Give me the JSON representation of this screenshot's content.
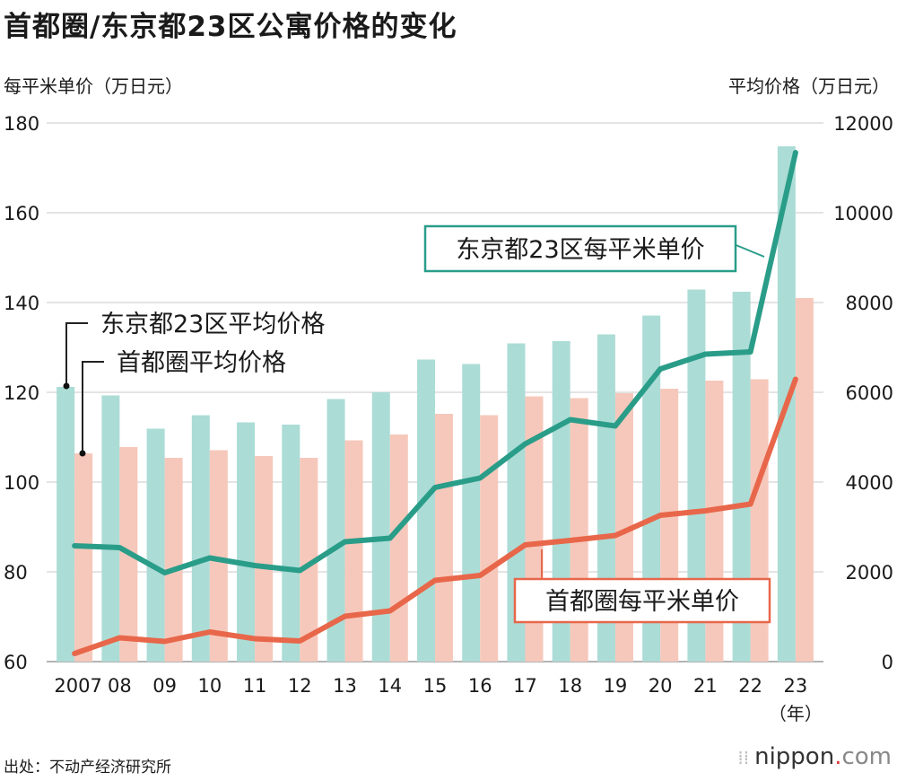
{
  "title": "首都圈/东京都23区公寓价格的变化",
  "left_axis_title": "每平米单价（万日元）",
  "right_axis_title": "平均价格（万日元）",
  "source": "出处：不动产经济研究所",
  "logo": {
    "marks": "⁞⁞",
    "text": "nippon",
    "dot": ".",
    "suffix": "com"
  },
  "chart_data": {
    "type": "bar+line",
    "categories": [
      "2007",
      "08",
      "09",
      "10",
      "11",
      "12",
      "13",
      "14",
      "15",
      "16",
      "17",
      "18",
      "19",
      "20",
      "21",
      "22",
      "23"
    ],
    "x_unit": "（年）",
    "left_axis": {
      "ylim": [
        60,
        180
      ],
      "ticks": [
        "60",
        "80",
        "100",
        "120",
        "140",
        "160",
        "180"
      ]
    },
    "right_axis": {
      "ylim": [
        0,
        12000
      ],
      "ticks": [
        "0",
        "2000",
        "4000",
        "6000",
        "8000",
        "10000",
        "12000"
      ]
    },
    "grid": true,
    "colors": {
      "tokyo_bar": "#acdcd6",
      "metro_bar": "#f6c8bb",
      "tokyo_line": "#2a9d89",
      "metro_line": "#e8674a"
    },
    "series": [
      {
        "name": "东京都23区平均价格",
        "axis": "right",
        "kind": "bar",
        "values": [
          6120,
          5930,
          5190,
          5490,
          5330,
          5280,
          5850,
          6000,
          6730,
          6630,
          7090,
          7140,
          7290,
          7710,
          8290,
          8240,
          11480
        ]
      },
      {
        "name": "首都圈平均价格",
        "axis": "right",
        "kind": "bar",
        "values": [
          4640,
          4780,
          4540,
          4710,
          4580,
          4540,
          4930,
          5060,
          5520,
          5490,
          5910,
          5870,
          5980,
          6080,
          6260,
          6290,
          8100
        ]
      },
      {
        "name": "东京都23区每平米单价",
        "axis": "left",
        "kind": "line",
        "values": [
          85.8,
          85.4,
          79.8,
          83.1,
          81.4,
          80.3,
          86.7,
          87.5,
          98.8,
          100.9,
          108.5,
          113.9,
          112.5,
          125.2,
          128.5,
          129.0,
          173.4
        ]
      },
      {
        "name": "首都圈每平米单价",
        "axis": "left",
        "kind": "line",
        "values": [
          61.8,
          65.3,
          64.5,
          66.6,
          65.1,
          64.6,
          70.1,
          71.3,
          78.1,
          79.2,
          86.0,
          87.0,
          88.1,
          92.6,
          93.6,
          95.1,
          122.9
        ]
      }
    ],
    "annotations": [
      {
        "text": "东京都23区平均价格",
        "target": "东京都23区平均价格"
      },
      {
        "text": "首都圈平均价格",
        "target": "首都圈平均价格"
      },
      {
        "text": "东京都23区每平米单价",
        "target": "东京都23区每平米单价"
      },
      {
        "text": "首都圈每平米单价",
        "target": "首都圈每平米单价"
      }
    ]
  }
}
